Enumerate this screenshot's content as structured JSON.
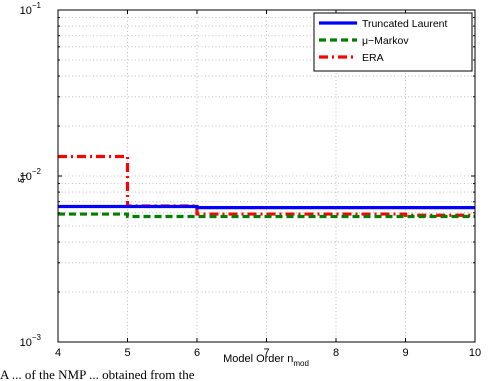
{
  "chart_data": {
    "type": "line",
    "xlabel": "Model Order n",
    "xlabel_sub": "mod",
    "ylabel": "ε",
    "ylabel_sub": "1",
    "yscale": "log",
    "xlim": [
      4,
      10
    ],
    "ylim": [
      0.001,
      0.1
    ],
    "xticks": [
      4,
      5,
      6,
      7,
      8,
      9,
      10
    ],
    "yticks": [
      {
        "value": 0.1,
        "base": "10",
        "exp": "−1"
      },
      {
        "value": 0.01,
        "base": "10",
        "exp": "−2"
      },
      {
        "value": 0.001,
        "base": "10",
        "exp": "−3"
      }
    ],
    "grid": true,
    "legend_position": "top-right",
    "series": [
      {
        "name": "Truncated Laurent",
        "color": "#0000ff",
        "style": "solid",
        "x": [
          4,
          5,
          6,
          7,
          8,
          9,
          10
        ],
        "y": [
          0.00655,
          0.00655,
          0.00645,
          0.00645,
          0.00645,
          0.00645,
          0.00645
        ]
      },
      {
        "name": "μ−Markov",
        "color": "#007f00",
        "style": "dashed",
        "x": [
          4,
          5,
          6,
          7,
          8,
          9,
          10
        ],
        "y": [
          0.0059,
          0.0057,
          0.0057,
          0.0057,
          0.0057,
          0.0057,
          0.0057
        ]
      },
      {
        "name": "ERA",
        "color": "#ff0000",
        "style": "dashdot",
        "x": [
          4,
          5,
          6,
          7,
          8,
          9,
          10
        ],
        "y": [
          0.0131,
          0.0066,
          0.0059,
          0.0059,
          0.0059,
          0.0058,
          0.0058
        ]
      }
    ]
  },
  "caption": "A ... of the NMP ... obtained from the"
}
